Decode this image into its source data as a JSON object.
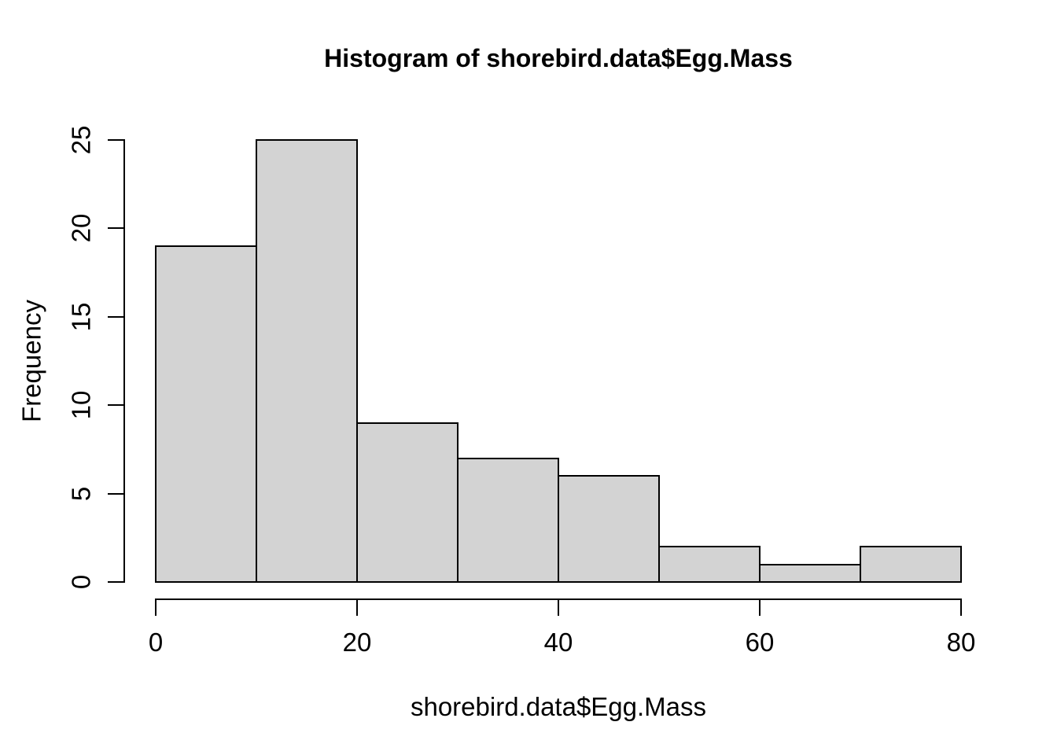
{
  "chart_data": {
    "type": "bar",
    "subtype": "histogram",
    "title": "Histogram of shorebird.data$Egg.Mass",
    "xlabel": "shorebird.data$Egg.Mass",
    "ylabel": "Frequency",
    "categories": [
      "0-10",
      "10-20",
      "20-30",
      "30-40",
      "40-50",
      "50-60",
      "60-70",
      "70-80"
    ],
    "values": [
      19,
      25,
      9,
      7,
      6,
      2,
      1,
      2
    ],
    "bin_width": 10,
    "xlim": [
      0,
      80
    ],
    "ylim": [
      0,
      25
    ],
    "x_ticks": [
      0,
      20,
      40,
      60,
      80
    ],
    "y_ticks": [
      0,
      5,
      10,
      15,
      20,
      25
    ],
    "grid": false,
    "legend": "none",
    "colors": {
      "bar_fill": "#d3d3d3",
      "bar_border": "#000000",
      "axis": "#000000",
      "text": "#000000",
      "background": "#ffffff"
    }
  }
}
